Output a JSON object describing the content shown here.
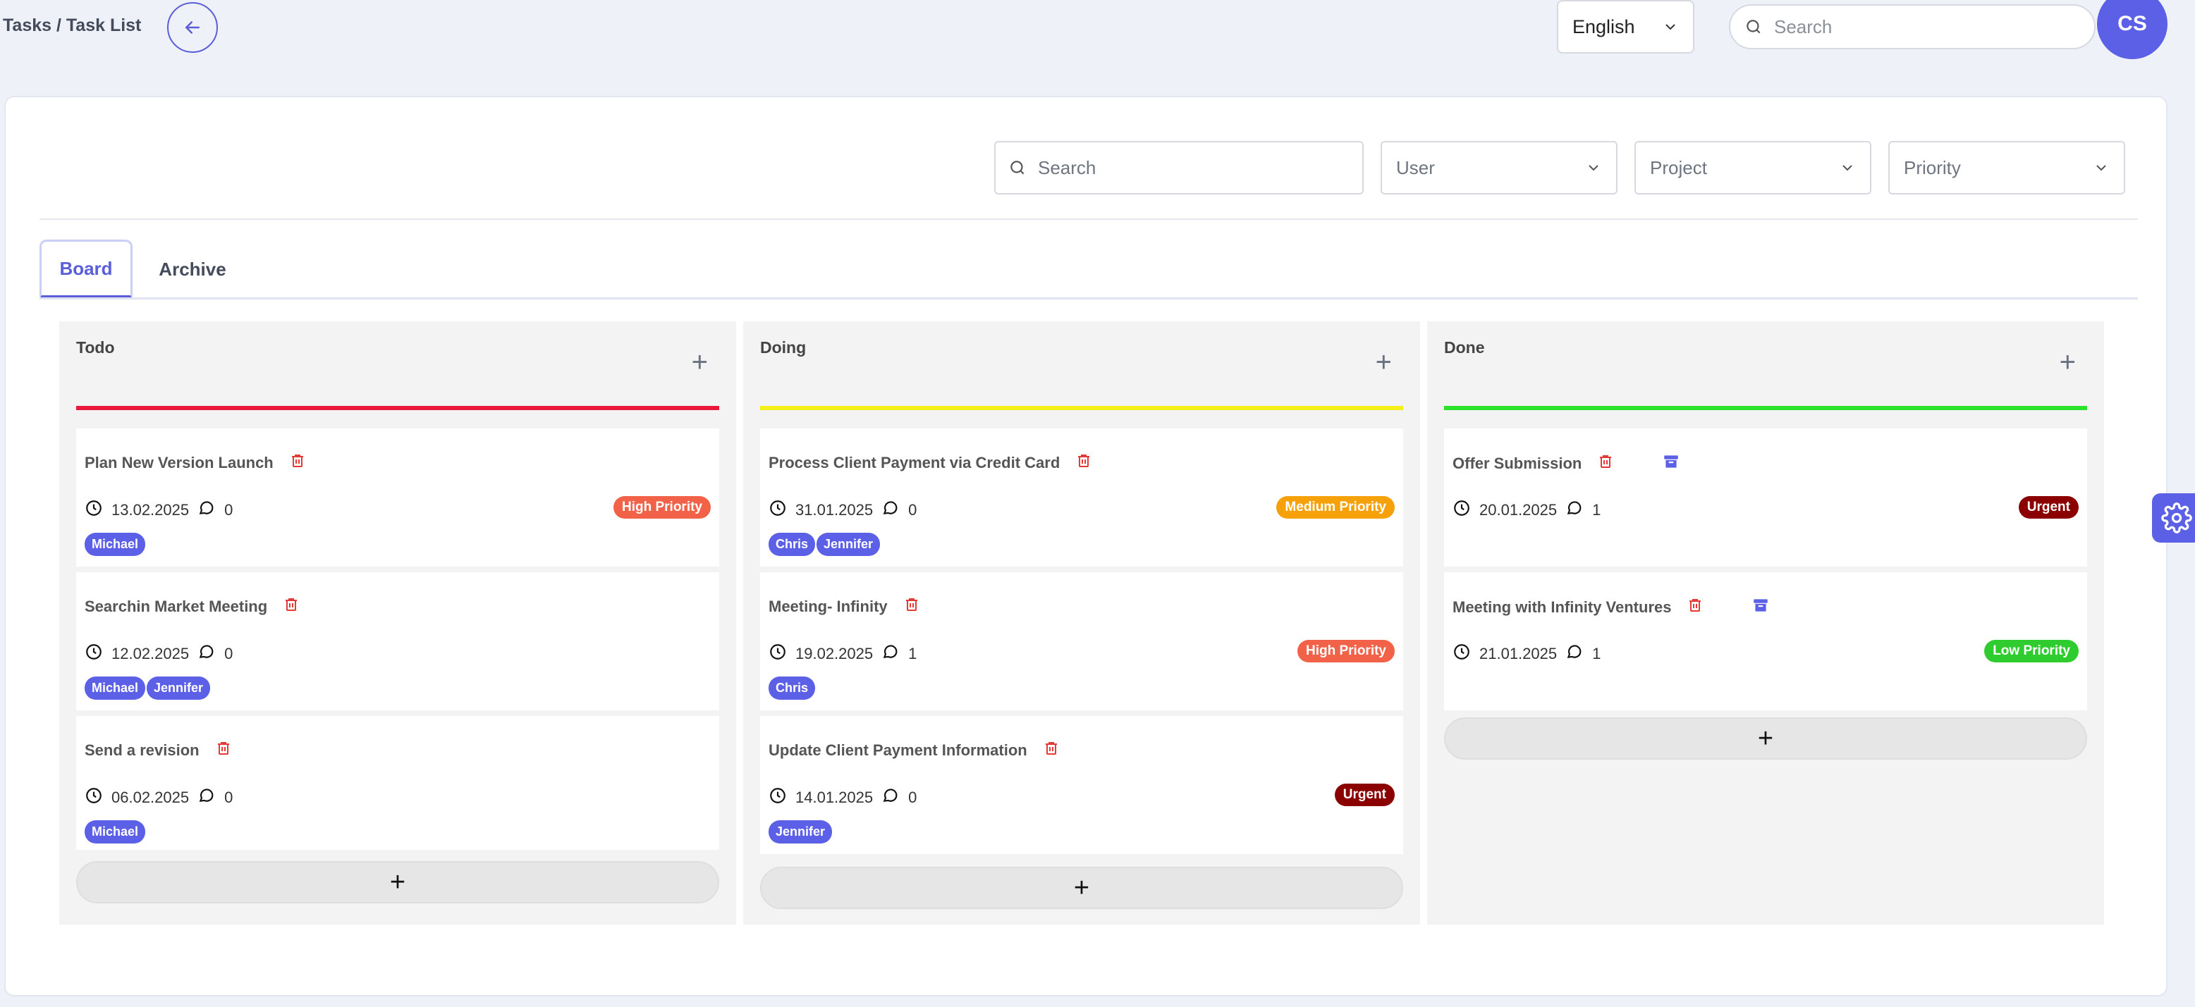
{
  "header": {
    "breadcrumb": "Tasks / Task List",
    "language": "English",
    "search_placeholder": "Search",
    "avatar_initials": "CS"
  },
  "filters": {
    "search_placeholder": "Search",
    "user": "User",
    "project": "Project",
    "priority": "Priority"
  },
  "tabs": {
    "board": "Board",
    "archive": "Archive"
  },
  "columns": [
    {
      "title": "Todo",
      "color": "#e8193c",
      "cards": [
        {
          "title": "Plan New Version Launch",
          "date": "13.02.2025",
          "comments": "0",
          "badge": "High Priority",
          "tags": [
            "Michael"
          ]
        },
        {
          "title": "Searchin Market Meeting",
          "date": "12.02.2025",
          "comments": "0",
          "badge": "",
          "tags": [
            "Michael",
            "Jennifer"
          ]
        },
        {
          "title": "Send a revision",
          "date": "06.02.2025",
          "comments": "0",
          "badge": "",
          "tags": [
            "Michael"
          ]
        }
      ],
      "add_label": "+"
    },
    {
      "title": "Doing",
      "color": "#f5f01a",
      "cards": [
        {
          "title": "Process Client Payment via Credit Card",
          "date": "31.01.2025",
          "comments": "0",
          "badge": "Medium Priority",
          "tags": [
            "Chris",
            "Jennifer"
          ]
        },
        {
          "title": "Meeting- Infinity",
          "date": "19.02.2025",
          "comments": "1",
          "badge": "High Priority",
          "tags": [
            "Chris"
          ]
        },
        {
          "title": "Update Client Payment Information",
          "date": "14.01.2025",
          "comments": "0",
          "badge": "Urgent",
          "tags": [
            "Jennifer"
          ]
        }
      ],
      "add_label": "+"
    },
    {
      "title": "Done",
      "color": "#2be22b",
      "cards": [
        {
          "title": "Offer Submission",
          "date": "20.01.2025",
          "comments": "1",
          "badge": "Urgent",
          "tags": []
        },
        {
          "title": "Meeting with Infinity Ventures",
          "date": "21.01.2025",
          "comments": "1",
          "badge": "Low Priority",
          "tags": []
        }
      ],
      "add_label": "+"
    }
  ],
  "colors": {
    "accent": "#5b60e6",
    "high": "#f26248",
    "medium": "#f7a10a",
    "urgent": "#8b0000",
    "low": "#2ecc2e",
    "delete": "#e53935"
  }
}
